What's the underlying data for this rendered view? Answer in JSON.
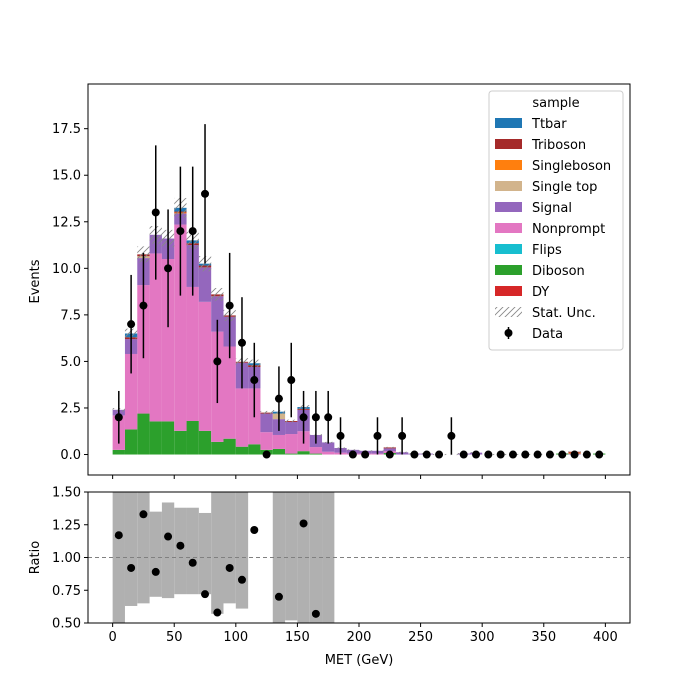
{
  "chart_data": [
    {
      "type": "bar",
      "subtype": "stacked-histogram",
      "ylabel": "Events",
      "xlim": [
        -20,
        420
      ],
      "ylim": [
        -1.1,
        19.9
      ],
      "yticks": [
        0,
        2.5,
        5,
        7.5,
        10,
        12.5,
        15,
        17.5
      ],
      "ytick_labels": [
        "0.0",
        "2.5",
        "5.0",
        "7.5",
        "10.0",
        "12.5",
        "15.0",
        "17.5"
      ],
      "bin_edges": [
        0,
        10,
        20,
        30,
        40,
        50,
        60,
        70,
        80,
        90,
        100,
        110,
        120,
        130,
        140,
        150,
        160,
        170,
        180,
        190,
        200,
        210,
        220,
        230,
        240,
        250,
        260,
        270,
        280,
        290,
        300,
        310,
        320,
        330,
        340,
        350,
        360,
        370,
        380,
        390,
        400
      ],
      "series": [
        {
          "name": "DY",
          "color": "#d62728",
          "values": [
            0,
            0,
            0,
            0,
            0,
            0,
            0,
            0,
            0,
            0,
            0,
            0,
            0,
            0,
            0,
            0,
            0,
            0,
            0,
            0,
            0,
            0,
            0,
            0,
            0,
            0,
            0,
            0,
            0,
            0,
            0,
            0,
            0,
            0,
            0,
            0,
            0,
            0,
            0,
            0
          ]
        },
        {
          "name": "Diboson",
          "color": "#2ca02c",
          "values": [
            0.25,
            1.35,
            2.2,
            1.78,
            1.78,
            1.27,
            1.8,
            1.27,
            0.68,
            0.85,
            0.42,
            0.55,
            0.25,
            0.3,
            0.05,
            0.18,
            0.05,
            0,
            0,
            0,
            0,
            0,
            0.08,
            0,
            0,
            0,
            0,
            0,
            0,
            0,
            0,
            0,
            0,
            0,
            0,
            0,
            0.05,
            0,
            0,
            0.05
          ]
        },
        {
          "name": "Flips",
          "color": "#17becf",
          "values": [
            0,
            0,
            0,
            0,
            0,
            0,
            0,
            0,
            0,
            0,
            0,
            0,
            0,
            0,
            0,
            0,
            0,
            0,
            0,
            0,
            0,
            0,
            0,
            0,
            0,
            0,
            0,
            0,
            0,
            0,
            0,
            0,
            0,
            0,
            0,
            0,
            0,
            0,
            0,
            0
          ]
        },
        {
          "name": "Nonprompt",
          "color": "#e377c2",
          "values": [
            1.85,
            4.05,
            6.9,
            9.02,
            8.72,
            11.08,
            7.2,
            6.93,
            5.92,
            4.95,
            3.13,
            3.0,
            0.95,
            0.75,
            1.05,
            1.07,
            0.35,
            0.15,
            0.1,
            0.05,
            0.05,
            0.05,
            0.1,
            0,
            0,
            0,
            0,
            0,
            0,
            0,
            0,
            0,
            0,
            0,
            0,
            0,
            0,
            0,
            0,
            0
          ]
        },
        {
          "name": "Signal",
          "color": "#9467bd",
          "values": [
            0.3,
            0.8,
            1.45,
            1.0,
            1.1,
            0.6,
            2.25,
            1.85,
            1.9,
            1.6,
            1.38,
            1.15,
            1.0,
            0.85,
            0.65,
            1.15,
            0.65,
            0.5,
            0.25,
            0.2,
            0.15,
            0.15,
            0.15,
            0.12,
            0.05,
            0.05,
            0,
            0,
            0.05,
            0.1,
            0,
            0,
            0,
            0,
            0,
            0,
            0,
            0.05,
            0,
            0
          ]
        },
        {
          "name": "Single top",
          "color": "#d2b48c",
          "values": [
            0,
            0,
            0.1,
            0,
            0,
            0,
            0,
            0,
            0,
            0,
            0,
            0,
            0,
            0.3,
            0,
            0,
            0,
            0,
            0,
            0,
            0,
            0,
            0,
            0,
            0,
            0,
            0,
            0,
            0,
            0,
            0,
            0,
            0,
            0,
            0,
            0,
            0,
            0,
            0,
            0
          ]
        },
        {
          "name": "Singleboson",
          "color": "#ff7f0e",
          "values": [
            0,
            0,
            0,
            0,
            0,
            0.05,
            0,
            0,
            0,
            0,
            0,
            0,
            0,
            0,
            0,
            0,
            0,
            0,
            0,
            0,
            0,
            0,
            0,
            0,
            0,
            0,
            0,
            0,
            0,
            0,
            0,
            0,
            0,
            0,
            0,
            0,
            0,
            0.05,
            0,
            0
          ]
        },
        {
          "name": "Triboson",
          "color": "#a52a2a",
          "values": [
            0,
            0.1,
            0.1,
            0,
            0,
            0.05,
            0.1,
            0.1,
            0.1,
            0.07,
            0.05,
            0.1,
            0.05,
            0,
            0.05,
            0.05,
            0,
            0,
            0,
            0,
            0,
            0,
            0.05,
            0,
            0,
            0,
            0,
            0,
            0,
            0,
            0,
            0,
            0,
            0,
            0,
            0,
            0,
            0.05,
            0,
            0
          ]
        },
        {
          "name": "Ttbar",
          "color": "#1f77b4",
          "values": [
            0,
            0.2,
            0,
            0,
            0,
            0.2,
            0.15,
            0.1,
            0,
            0,
            0,
            0.1,
            0,
            0.1,
            0,
            0.1,
            0,
            0,
            0,
            0,
            0,
            0,
            0,
            0,
            0,
            0,
            0,
            0,
            0,
            0,
            0,
            0,
            0,
            0,
            0,
            0,
            0,
            0,
            0,
            0
          ]
        }
      ],
      "stat_unc_frac": 0.04,
      "data_points": {
        "name": "Data",
        "x": [
          5,
          15,
          25,
          35,
          45,
          55,
          65,
          75,
          85,
          95,
          105,
          115,
          125,
          135,
          145,
          155,
          165,
          175,
          185,
          195,
          205,
          215,
          225,
          235,
          245,
          255,
          265,
          275,
          285,
          295,
          305,
          315,
          325,
          335,
          345,
          355,
          365,
          375,
          385,
          395
        ],
        "y": [
          2,
          7,
          8,
          13,
          10,
          12,
          12,
          14,
          5,
          8,
          6,
          4,
          0,
          3,
          4,
          2,
          2,
          2,
          1,
          0,
          0,
          1,
          0,
          1,
          0,
          0,
          0,
          1,
          0,
          0,
          0,
          0,
          0,
          0,
          0,
          0,
          0,
          0,
          0,
          0
        ]
      },
      "legend": {
        "title": "sample",
        "placement": "top-right",
        "entries": [
          {
            "label": "Ttbar",
            "kind": "patch",
            "color": "#1f77b4"
          },
          {
            "label": "Triboson",
            "kind": "patch",
            "color": "#a52a2a"
          },
          {
            "label": "Singleboson",
            "kind": "patch",
            "color": "#ff7f0e"
          },
          {
            "label": "Single top",
            "kind": "patch",
            "color": "#d2b48c"
          },
          {
            "label": "Signal",
            "kind": "patch",
            "color": "#9467bd"
          },
          {
            "label": "Nonprompt",
            "kind": "patch",
            "color": "#e377c2"
          },
          {
            "label": "Flips",
            "kind": "patch",
            "color": "#17becf"
          },
          {
            "label": "Diboson",
            "kind": "patch",
            "color": "#2ca02c"
          },
          {
            "label": "DY",
            "kind": "patch",
            "color": "#d62728"
          },
          {
            "label": "Stat. Unc.",
            "kind": "hatch",
            "color": "#888888"
          },
          {
            "label": "Data",
            "kind": "errorbar",
            "color": "#000000"
          }
        ]
      }
    },
    {
      "type": "scatter",
      "subtype": "ratio-panel",
      "xlabel": "MET (GeV)",
      "ylabel": "Ratio",
      "xlim": [
        -20,
        420
      ],
      "ylim": [
        0.5,
        1.5
      ],
      "xticks": [
        0,
        50,
        100,
        150,
        200,
        250,
        300,
        350,
        400
      ],
      "xtick_labels": [
        "0",
        "50",
        "100",
        "150",
        "200",
        "250",
        "300",
        "350",
        "400"
      ],
      "yticks": [
        0.5,
        0.75,
        1.0,
        1.25,
        1.5
      ],
      "ytick_labels": [
        "0.50",
        "0.75",
        "1.00",
        "1.25",
        "1.50"
      ],
      "reference_line": 1.0,
      "uncertainty_band": {
        "color": "#b0b0b0",
        "bins": [
          {
            "x0": 0,
            "x1": 10,
            "lo": 0.5,
            "hi": 1.5
          },
          {
            "x0": 10,
            "x1": 20,
            "lo": 0.63,
            "hi": 1.5
          },
          {
            "x0": 20,
            "x1": 30,
            "lo": 0.65,
            "hi": 1.5
          },
          {
            "x0": 30,
            "x1": 40,
            "lo": 0.7,
            "hi": 1.35
          },
          {
            "x0": 40,
            "x1": 50,
            "lo": 0.69,
            "hi": 1.42
          },
          {
            "x0": 50,
            "x1": 60,
            "lo": 0.72,
            "hi": 1.38
          },
          {
            "x0": 60,
            "x1": 70,
            "lo": 0.72,
            "hi": 1.38
          },
          {
            "x0": 70,
            "x1": 80,
            "lo": 0.72,
            "hi": 1.34
          },
          {
            "x0": 80,
            "x1": 90,
            "lo": 0.57,
            "hi": 1.5
          },
          {
            "x0": 90,
            "x1": 100,
            "lo": 0.65,
            "hi": 1.5
          },
          {
            "x0": 100,
            "x1": 110,
            "lo": 0.61,
            "hi": 1.5
          },
          {
            "x0": 130,
            "x1": 140,
            "lo": 0.5,
            "hi": 1.5
          },
          {
            "x0": 140,
            "x1": 150,
            "lo": 0.52,
            "hi": 1.5
          },
          {
            "x0": 150,
            "x1": 160,
            "lo": 0.5,
            "hi": 1.5
          },
          {
            "x0": 160,
            "x1": 170,
            "lo": 0.5,
            "hi": 1.5
          },
          {
            "x0": 170,
            "x1": 180,
            "lo": 0.5,
            "hi": 1.5
          }
        ]
      },
      "points": {
        "x": [
          5,
          15,
          25,
          35,
          45,
          55,
          65,
          75,
          85,
          95,
          105,
          115,
          135,
          155,
          165
        ],
        "y": [
          1.17,
          0.92,
          1.33,
          0.89,
          1.16,
          1.09,
          0.96,
          0.72,
          0.58,
          0.92,
          0.83,
          1.21,
          0.7,
          1.26,
          0.57
        ]
      }
    }
  ]
}
